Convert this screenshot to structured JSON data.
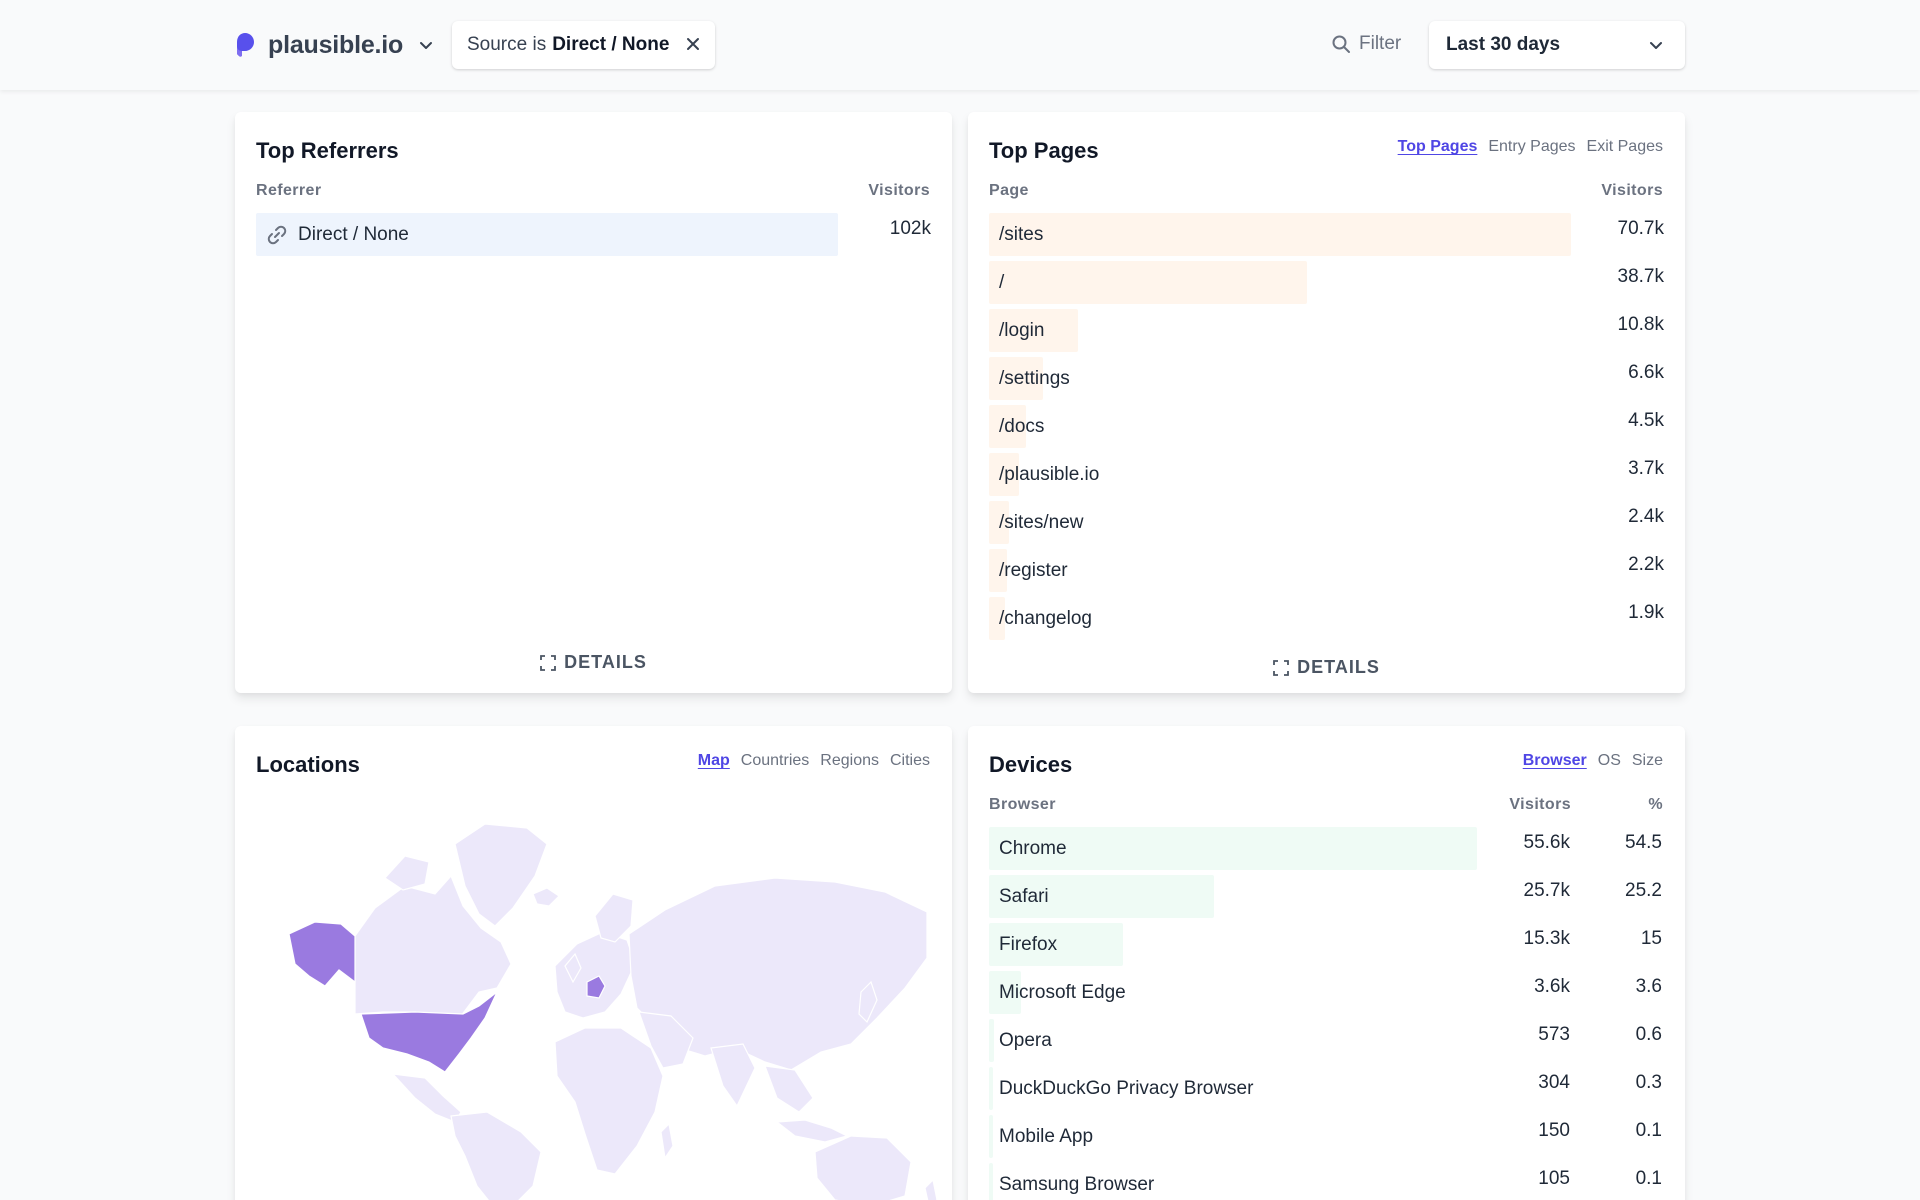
{
  "header": {
    "site_name": "plausible.io",
    "filter_prefix": "Source is",
    "filter_value": "Direct / None",
    "filter_button": "Filter",
    "period": "Last 30 days",
    "accent": "#4f46e5"
  },
  "referrers": {
    "title": "Top Referrers",
    "col_label": "Referrer",
    "col_value": "Visitors",
    "rows": [
      {
        "label": "Direct / None",
        "value": "102k",
        "fraction": 1.0,
        "icon": "link-icon"
      }
    ],
    "bar_color": "#eef4fd",
    "details": "DETAILS"
  },
  "pages": {
    "title": "Top Pages",
    "tabs": [
      "Top Pages",
      "Entry Pages",
      "Exit Pages"
    ],
    "active_tab": "Top Pages",
    "col_label": "Page",
    "col_value": "Visitors",
    "rows": [
      {
        "label": "/sites",
        "value": "70.7k",
        "fraction": 1.0
      },
      {
        "label": "/",
        "value": "38.7k",
        "fraction": 0.547
      },
      {
        "label": "/login",
        "value": "10.8k",
        "fraction": 0.153
      },
      {
        "label": "/settings",
        "value": "6.6k",
        "fraction": 0.093
      },
      {
        "label": "/docs",
        "value": "4.5k",
        "fraction": 0.064
      },
      {
        "label": "/plausible.io",
        "value": "3.7k",
        "fraction": 0.052
      },
      {
        "label": "/sites/new",
        "value": "2.4k",
        "fraction": 0.034
      },
      {
        "label": "/register",
        "value": "2.2k",
        "fraction": 0.031
      },
      {
        "label": "/changelog",
        "value": "1.9k",
        "fraction": 0.027
      }
    ],
    "bar_color": "#fff5ec",
    "details": "DETAILS"
  },
  "locations": {
    "title": "Locations",
    "tabs": [
      "Map",
      "Countries",
      "Regions",
      "Cities"
    ],
    "active_tab": "Map",
    "map_base_color": "#ece8fa",
    "map_highlight_color": "#9a7ae0"
  },
  "devices": {
    "title": "Devices",
    "tabs": [
      "Browser",
      "OS",
      "Size"
    ],
    "active_tab": "Browser",
    "col_label": "Browser",
    "col_value": "Visitors",
    "col_pct": "%",
    "rows": [
      {
        "label": "Chrome",
        "value": "55.6k",
        "pct": "54.5",
        "fraction": 1.0
      },
      {
        "label": "Safari",
        "value": "25.7k",
        "pct": "25.2",
        "fraction": 0.462
      },
      {
        "label": "Firefox",
        "value": "15.3k",
        "pct": "15",
        "fraction": 0.275
      },
      {
        "label": "Microsoft Edge",
        "value": "3.6k",
        "pct": "3.6",
        "fraction": 0.066
      },
      {
        "label": "Opera",
        "value": "573",
        "pct": "0.6",
        "fraction": 0.01
      },
      {
        "label": "DuckDuckGo Privacy Browser",
        "value": "304",
        "pct": "0.3",
        "fraction": 0.006
      },
      {
        "label": "Mobile App",
        "value": "150",
        "pct": "0.1",
        "fraction": 0.003
      },
      {
        "label": "Samsung Browser",
        "value": "105",
        "pct": "0.1",
        "fraction": 0.002
      }
    ],
    "bar_color": "#effbf5"
  }
}
